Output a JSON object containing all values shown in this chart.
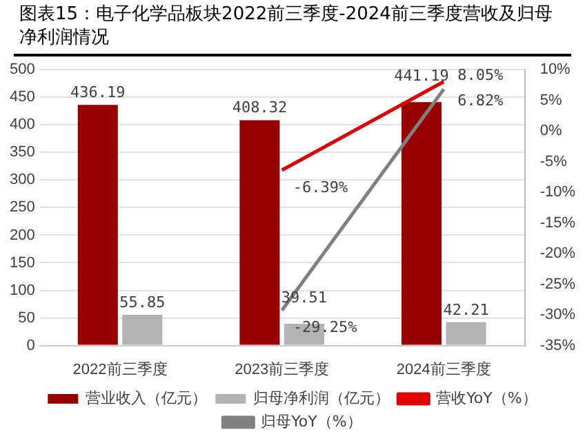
{
  "chart_data": {
    "type": "bar",
    "title": "图表15：电子化学品板块2022前三季度-2024前三季度营收及归母净利润情况",
    "categories": [
      "2022前三季度",
      "2023前三季度",
      "2024前三季度"
    ],
    "series": [
      {
        "name": "营业收入（亿元）",
        "color": "#990000",
        "values": [
          436.19,
          408.32,
          441.19
        ],
        "value_labels": [
          "436.19",
          "408.32",
          "441.19"
        ]
      },
      {
        "name": "归母净利润（亿元）",
        "color": "#b3b3b3",
        "values": [
          55.85,
          39.51,
          42.21
        ],
        "value_labels": [
          "55.85",
          "39.51",
          "42.21"
        ]
      },
      {
        "name": "营收YoY（%）",
        "type": "line",
        "axis": "y2",
        "color": "#e00000",
        "values": [
          null,
          -6.39,
          8.05
        ],
        "value_labels": [
          null,
          "-6.39%",
          "8.05%"
        ]
      },
      {
        "name": "归母YoY（%）",
        "type": "line",
        "axis": "y2",
        "color": "#808080",
        "values": [
          null,
          -29.25,
          6.82
        ],
        "value_labels": [
          null,
          "-29.25%",
          "6.82%"
        ]
      }
    ],
    "ylim": [
      0,
      500
    ],
    "yticks": [
      0,
      50,
      100,
      150,
      200,
      250,
      300,
      350,
      400,
      450,
      500
    ],
    "y2lim": [
      -35,
      10
    ],
    "y2ticks": [
      {
        "value": -35,
        "label": "-35%"
      },
      {
        "value": -30,
        "label": "-30%"
      },
      {
        "value": -25,
        "label": "-25%"
      },
      {
        "value": -20,
        "label": "-20%"
      },
      {
        "value": -15,
        "label": "-15%"
      },
      {
        "value": -10,
        "label": "-10%"
      },
      {
        "value": -5,
        "label": "-5%"
      },
      {
        "value": 0,
        "label": "0%"
      },
      {
        "value": 5,
        "label": "5%"
      },
      {
        "value": 10,
        "label": "10%"
      }
    ],
    "grid": "y",
    "legend": "bottom",
    "marker": "none",
    "line_style": "solid"
  }
}
